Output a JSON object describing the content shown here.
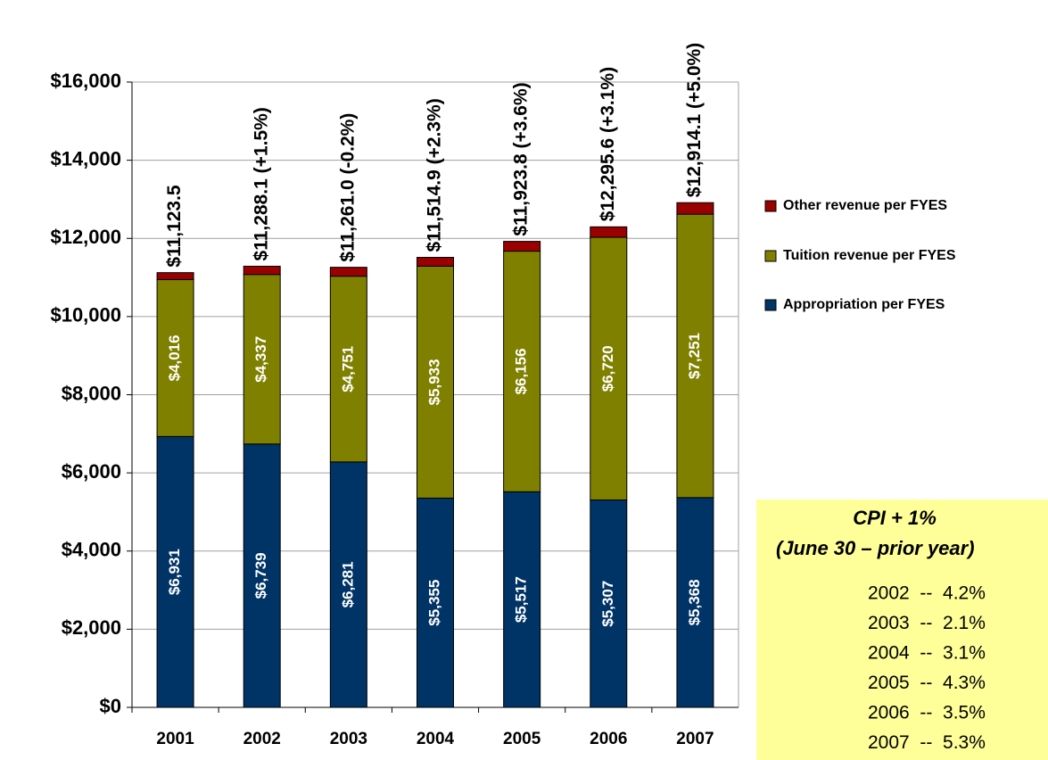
{
  "chart_data": {
    "type": "stacked_bar",
    "categories": [
      "2001",
      "2002",
      "2003",
      "2004",
      "2005",
      "2006",
      "2007"
    ],
    "series": [
      {
        "name": "Appropriation per FYES",
        "color": "#003366",
        "values": [
          6931,
          6739,
          6281,
          5355,
          5517,
          5307,
          5368
        ],
        "value_labels": [
          "$6,931",
          "$6,739",
          "$6,281",
          "$5,355",
          "$5,517",
          "$5,307",
          "$5,368"
        ]
      },
      {
        "name": "Tuition revenue per FYES",
        "color": "#808000",
        "values": [
          4016,
          4337,
          4751,
          5933,
          6156,
          6720,
          7251
        ],
        "value_labels": [
          "$4,016",
          "$4,337",
          "$4,751",
          "$5,933",
          "$6,156",
          "$6,720",
          "$7,251"
        ]
      },
      {
        "name": "Other revenue per FYES",
        "color": "#990000",
        "values": [
          176.5,
          212.1,
          229,
          226.9,
          250.8,
          268.6,
          295.1
        ]
      }
    ],
    "totals": [
      11123.5,
      11288.1,
      11261.0,
      11514.9,
      11923.8,
      12295.6,
      12914.1
    ],
    "total_labels": [
      "$11,123.5",
      "$11,288.1 (+1.5%)",
      "$11,261.0 (-0.2%)",
      "$11,514.9 (+2.3%)",
      "$11,923.8 (+3.6%)",
      "$12,295.6 (+3.1%)",
      "$12,914.1 (+5.0%)"
    ],
    "ylim": [
      0,
      16000
    ],
    "yticks": [
      {
        "value": 0,
        "label": "$0"
      },
      {
        "value": 2000,
        "label": "$2,000"
      },
      {
        "value": 4000,
        "label": "$4,000"
      },
      {
        "value": 6000,
        "label": "$6,000"
      },
      {
        "value": 8000,
        "label": "$8,000"
      },
      {
        "value": 10000,
        "label": "$10,000"
      },
      {
        "value": 12000,
        "label": "$12,000"
      },
      {
        "value": 14000,
        "label": "$14,000"
      },
      {
        "value": 16000,
        "label": "$16,000"
      }
    ],
    "grid": true,
    "legend": "right",
    "annotation": {
      "title": "CPI + 1%",
      "subtitle": "(June 30 – prior year)",
      "rows": [
        "2002  --  4.2%",
        "2003  --  2.1%",
        "2004  --  3.1%",
        "2005  --  4.3%",
        "2006  --  3.5%",
        "2007  --  5.3%"
      ]
    }
  }
}
